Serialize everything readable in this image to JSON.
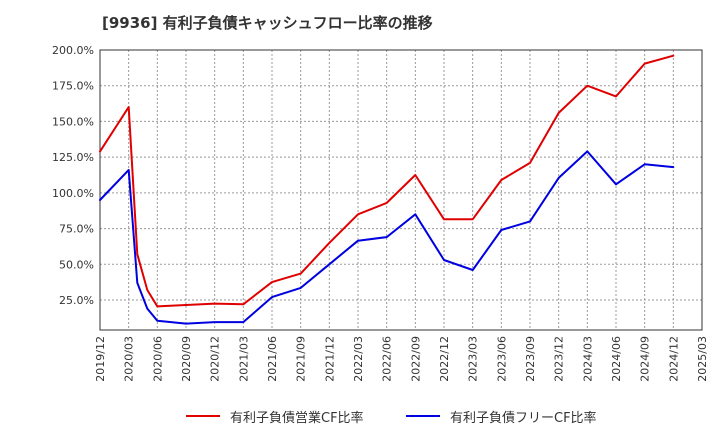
{
  "chart_data": {
    "type": "line",
    "title": "[9936]  有利子負債キャッシュフロー比率の推移",
    "xlabel": "",
    "ylabel": "",
    "x_tick_labels": [
      "2019/12",
      "2020/03",
      "2020/06",
      "2020/09",
      "2020/12",
      "2021/03",
      "2021/06",
      "2021/09",
      "2021/12",
      "2022/03",
      "2022/06",
      "2022/09",
      "2022/12",
      "2023/03",
      "2023/06",
      "2023/09",
      "2023/12",
      "2024/03",
      "2024/06",
      "2024/09",
      "2024/12",
      "2025/03"
    ],
    "y_tick_labels": [
      "25.0%",
      "50.0%",
      "75.0%",
      "100.0%",
      "125.0%",
      "150.0%",
      "175.0%",
      "200.0%"
    ],
    "y_ticks": [
      25,
      50,
      75,
      100,
      125,
      150,
      175,
      200
    ],
    "ylim": [
      4,
      200
    ],
    "xlim": [
      0,
      21
    ],
    "grid": true,
    "legend_position": "bottom",
    "series": [
      {
        "name": "有利子負債営業CF比率",
        "color": "#e00000",
        "x": [
          0,
          1,
          1.3,
          1.65,
          2,
          3,
          4,
          5,
          6,
          7,
          8,
          9,
          10,
          11,
          12,
          13,
          14,
          15,
          16,
          17,
          18,
          19,
          20
        ],
        "values": [
          129,
          160,
          57,
          32,
          20.5,
          21.5,
          22.5,
          22,
          37.5,
          43.5,
          65,
          85,
          93,
          112.5,
          81.5,
          81.5,
          109,
          121,
          156,
          175,
          167.5,
          190.5,
          196
        ]
      },
      {
        "name": "有利子負債フリーCF比率",
        "color": "#0000e0",
        "x": [
          0,
          1,
          1.3,
          1.65,
          2,
          3,
          4,
          5,
          6,
          7,
          8,
          9,
          10,
          11,
          12,
          13,
          14,
          15,
          16,
          17,
          18,
          19,
          20
        ],
        "values": [
          95,
          116,
          37,
          19,
          10.5,
          8.5,
          9.5,
          9.5,
          27,
          33.5,
          50,
          66.5,
          69,
          85,
          53,
          46,
          74,
          80,
          110.5,
          129,
          106,
          120,
          118
        ]
      }
    ]
  }
}
